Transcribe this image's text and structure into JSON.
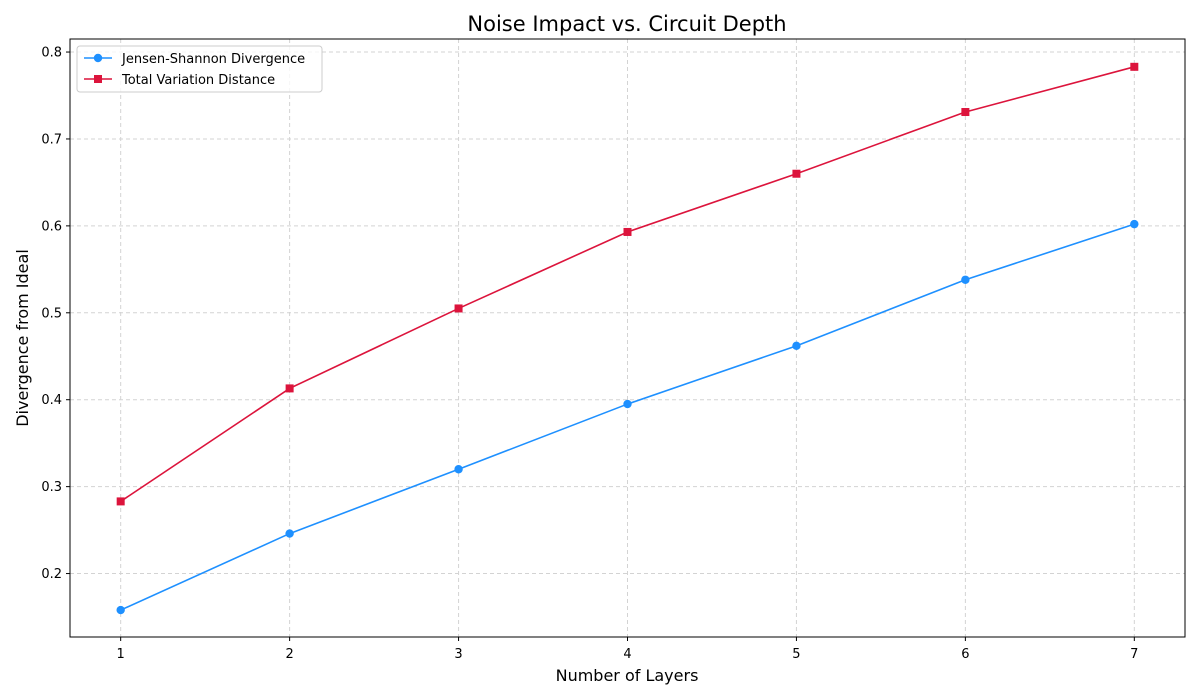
{
  "chart_data": {
    "type": "line",
    "title": "Noise Impact vs. Circuit Depth",
    "xlabel": "Number of Layers",
    "ylabel": "Divergence from Ideal",
    "x": [
      1,
      2,
      3,
      4,
      5,
      6,
      7
    ],
    "xlim": [
      0.7,
      7.3
    ],
    "ylim": [
      0.127,
      0.815
    ],
    "xticks": [
      1,
      2,
      3,
      4,
      5,
      6,
      7
    ],
    "yticks": [
      0.2,
      0.3,
      0.4,
      0.5,
      0.6,
      0.7,
      0.8
    ],
    "grid": true,
    "legend_position": "upper left",
    "series": [
      {
        "name": "Jensen-Shannon Divergence",
        "color": "#1e90ff",
        "marker": "circle",
        "values": [
          0.158,
          0.246,
          0.32,
          0.395,
          0.462,
          0.538,
          0.602
        ]
      },
      {
        "name": "Total Variation Distance",
        "color": "#dc143c",
        "marker": "square",
        "values": [
          0.283,
          0.413,
          0.505,
          0.593,
          0.66,
          0.731,
          0.783
        ]
      }
    ]
  }
}
